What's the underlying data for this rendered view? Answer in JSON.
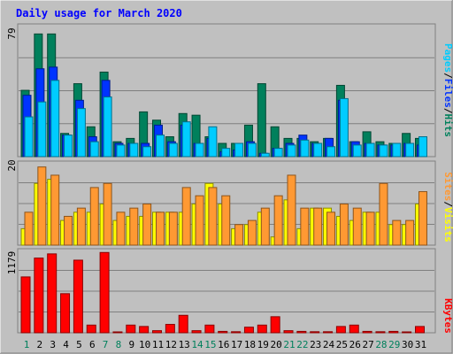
{
  "chart_data": [
    {
      "type": "bar",
      "title": "Daily usage for March 2020",
      "panel": "hits-files-pages",
      "ymax_label": "79",
      "ylim": [
        0,
        79
      ],
      "legend": {
        "pages": "Pages",
        "files": "Files",
        "hits": "Hits",
        "sep1": "/",
        "sep2": "/"
      },
      "categories": [
        "1",
        "2",
        "3",
        "4",
        "5",
        "6",
        "7",
        "8",
        "9",
        "10",
        "11",
        "12",
        "13",
        "14",
        "15",
        "16",
        "17",
        "18",
        "19",
        "20",
        "21",
        "22",
        "23",
        "24",
        "25",
        "26",
        "27",
        "28",
        "29",
        "30",
        "31"
      ],
      "weekend_days": [
        "1",
        "7",
        "8",
        "14",
        "15",
        "21",
        "22",
        "28",
        "29"
      ],
      "series": [
        {
          "name": "Hits",
          "color": "#00805c",
          "values": [
            40,
            74,
            74,
            14,
            44,
            18,
            51,
            9,
            11,
            27,
            22,
            12,
            26,
            25,
            12,
            8,
            8,
            19,
            44,
            18,
            11,
            11,
            9,
            11,
            43,
            9,
            15,
            9,
            8,
            14,
            11
          ]
        },
        {
          "name": "Files",
          "color": "#0033ff",
          "values": [
            37,
            53,
            54,
            13,
            34,
            12,
            46,
            8,
            8,
            8,
            19,
            9,
            19,
            8,
            11,
            3,
            4,
            9,
            2,
            5,
            8,
            13,
            8,
            11,
            34,
            9,
            8,
            7,
            7,
            8,
            7
          ]
        },
        {
          "name": "Pages",
          "color": "#00ccff",
          "values": [
            24,
            33,
            46,
            13,
            29,
            9,
            36,
            7,
            8,
            6,
            13,
            8,
            21,
            8,
            18,
            5,
            8,
            8,
            2,
            5,
            7,
            10,
            8,
            6,
            35,
            7,
            8,
            7,
            8,
            8,
            12
          ]
        }
      ]
    },
    {
      "type": "bar",
      "panel": "visits-sites",
      "ymax_label": "20",
      "ylim": [
        0,
        20
      ],
      "legend": {
        "sites": "Sites",
        "visits": "Visits",
        "sep": "/"
      },
      "categories": [
        "1",
        "2",
        "3",
        "4",
        "5",
        "6",
        "7",
        "8",
        "9",
        "10",
        "11",
        "12",
        "13",
        "14",
        "15",
        "16",
        "17",
        "18",
        "19",
        "20",
        "21",
        "22",
        "23",
        "24",
        "25",
        "26",
        "27",
        "28",
        "29",
        "30",
        "31"
      ],
      "series": [
        {
          "name": "Visits",
          "color": "#ffff00",
          "values": [
            4,
            15,
            16,
            6,
            8,
            8,
            10,
            6,
            7,
            7,
            8,
            8,
            8,
            10,
            15,
            10,
            4,
            5,
            8,
            2,
            11,
            4,
            9,
            9,
            7,
            6,
            8,
            8,
            5,
            5,
            10
          ]
        },
        {
          "name": "Sites",
          "color": "#ff9933",
          "values": [
            8,
            19,
            17,
            7,
            9,
            14,
            15,
            8,
            9,
            10,
            8,
            8,
            14,
            12,
            14,
            12,
            5,
            6,
            9,
            12,
            17,
            9,
            9,
            8,
            10,
            9,
            8,
            15,
            6,
            6,
            13
          ]
        }
      ]
    },
    {
      "type": "bar",
      "panel": "kbytes",
      "ymax_label": "1179",
      "ylim": [
        0,
        1179
      ],
      "legend": {
        "kbytes": "KBytes"
      },
      "categories": [
        "1",
        "2",
        "3",
        "4",
        "5",
        "6",
        "7",
        "8",
        "9",
        "10",
        "11",
        "12",
        "13",
        "14",
        "15",
        "16",
        "17",
        "18",
        "19",
        "20",
        "21",
        "22",
        "23",
        "24",
        "25",
        "26",
        "27",
        "28",
        "29",
        "30",
        "31"
      ],
      "series": [
        {
          "name": "KBytes",
          "color": "#ff0000",
          "values": [
            800,
            1070,
            1130,
            560,
            1040,
            110,
            1150,
            10,
            110,
            90,
            30,
            120,
            250,
            30,
            110,
            20,
            15,
            80,
            110,
            230,
            30,
            20,
            15,
            15,
            90,
            110,
            20,
            15,
            20,
            10,
            90
          ]
        }
      ]
    }
  ]
}
